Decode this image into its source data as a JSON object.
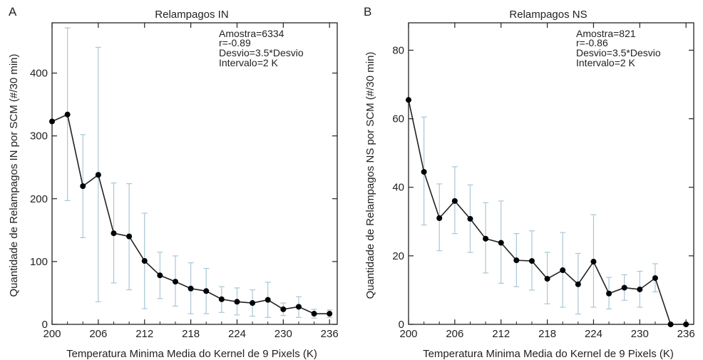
{
  "colors": {
    "line": "#222222",
    "point": "#000000",
    "errorbar": "#a9c7d6",
    "axis": "#222222"
  },
  "chart_data": [
    {
      "panel_label": "A",
      "type": "line",
      "title": "Relampagos IN",
      "xlabel": "Temperatura Minima Media do Kernel de 9 Pixels (K)",
      "ylabel": "Quantidade de Relampagos IN por SCM (#/30 min)",
      "xlim": [
        200,
        237
      ],
      "ylim": [
        0,
        480
      ],
      "xticks": [
        200,
        206,
        212,
        218,
        224,
        230,
        236
      ],
      "yticks": [
        0,
        100,
        200,
        300,
        400
      ],
      "annotations": [
        "Amostra=6334",
        "r=-0.89",
        "Desvio=3.5*Desvio",
        "Intervalo=2 K"
      ],
      "x": [
        200,
        202,
        204,
        206,
        208,
        210,
        212,
        214,
        216,
        218,
        220,
        222,
        224,
        226,
        228,
        230,
        232,
        234,
        236
      ],
      "y": [
        323,
        334,
        220,
        238,
        145,
        140,
        101,
        78,
        68,
        57,
        53,
        40,
        36,
        34,
        39,
        24,
        28,
        17,
        17
      ],
      "err_low": [
        null,
        197,
        138,
        36,
        66,
        55,
        25,
        41,
        29,
        17,
        17,
        19,
        15,
        13,
        11,
        14,
        11,
        10,
        11
      ],
      "err_high": [
        null,
        472,
        302,
        441,
        225,
        224,
        177,
        115,
        109,
        98,
        89,
        60,
        58,
        55,
        67,
        34,
        44,
        24,
        23
      ]
    },
    {
      "panel_label": "B",
      "type": "line",
      "title": "Relampagos NS",
      "xlabel": "Temperatura Minima Media do Kernel de 9 Pixels (K)",
      "ylabel": "Quantidade de Relampagos NS por SCM (#/30 min)",
      "xlim": [
        200,
        237
      ],
      "ylim": [
        0,
        88
      ],
      "xticks": [
        200,
        206,
        212,
        218,
        224,
        230,
        236
      ],
      "yticks": [
        0,
        20,
        40,
        60,
        80
      ],
      "annotations": [
        "Amostra=821",
        "r=-0.86",
        "Desvio=3.5*Desvio",
        "Intervalo=2 K"
      ],
      "x": [
        200,
        202,
        204,
        206,
        208,
        210,
        212,
        214,
        216,
        218,
        220,
        222,
        224,
        226,
        228,
        230,
        232,
        234,
        236
      ],
      "y": [
        65.5,
        44.5,
        31,
        36,
        30.8,
        25,
        23.8,
        18.7,
        18.5,
        13.3,
        15.8,
        11.7,
        18.3,
        9,
        10.7,
        10.2,
        13.5,
        0,
        0
      ],
      "err_low": [
        null,
        29,
        21.5,
        26.5,
        21,
        15,
        12,
        11,
        10,
        6,
        5,
        3,
        5,
        4.5,
        7,
        5,
        9.5,
        null,
        null
      ],
      "err_high": [
        null,
        60.5,
        41,
        46,
        40.7,
        35.5,
        36,
        26.5,
        27.3,
        21,
        26.8,
        20.7,
        32,
        13.7,
        14.5,
        15.5,
        17.7,
        null,
        null
      ]
    }
  ]
}
